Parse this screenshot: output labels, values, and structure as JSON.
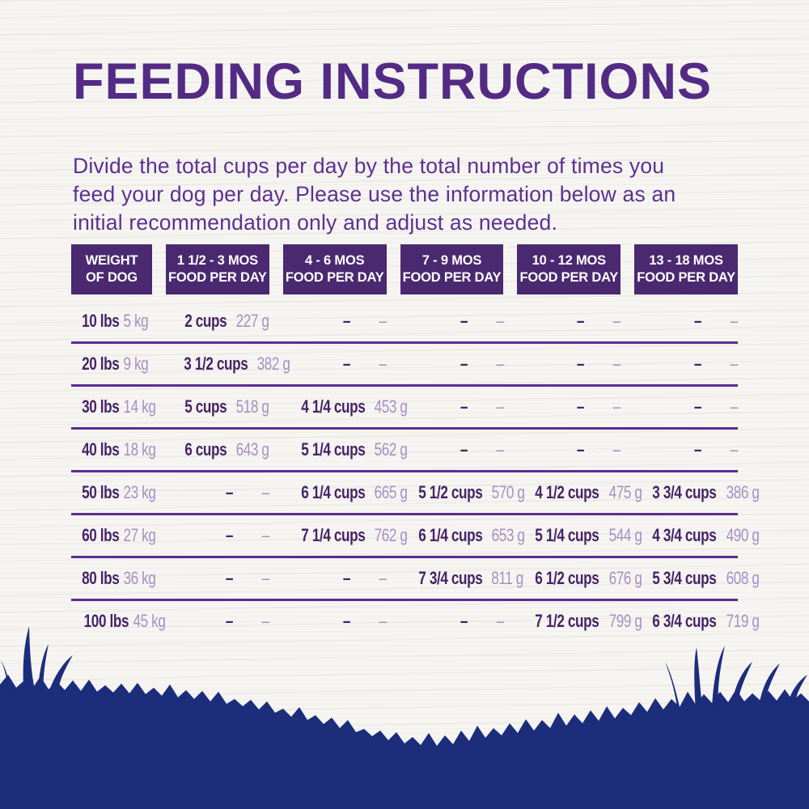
{
  "page": {
    "title": "FEEDING INSTRUCTIONS",
    "intro_lines": [
      "Divide the total cups per day by the total number of times you",
      "feed your dog per day. Please use the information below as an",
      "initial recommendation only and adjust as needed."
    ]
  },
  "colors": {
    "title_purple": "#532b84",
    "body_purple": "#5e3090",
    "header_bg": "#4b2971",
    "value_dark": "#472367",
    "value_light": "#a78fc3",
    "rule_purple": "#5c2c91",
    "grass_navy": "#1c2d7c",
    "background": "#f6f5f2"
  },
  "table": {
    "headers": [
      {
        "line1": "WEIGHT",
        "line2": "OF DOG"
      },
      {
        "line1": "1 1/2 - 3 MOS",
        "line2": "FOOD PER DAY"
      },
      {
        "line1": "4 - 6 MOS",
        "line2": "FOOD PER DAY"
      },
      {
        "line1": "7 - 9 MOS",
        "line2": "FOOD PER DAY"
      },
      {
        "line1": "10 - 12 MOS",
        "line2": "FOOD PER DAY"
      },
      {
        "line1": "13 - 18 MOS",
        "line2": "FOOD PER DAY"
      }
    ],
    "rows": [
      {
        "lbs": "10 lbs",
        "kg": "5 kg",
        "cells": [
          {
            "cups": "2 cups",
            "grams": "227 g"
          },
          {
            "cups": "–",
            "grams": "–"
          },
          {
            "cups": "–",
            "grams": "–"
          },
          {
            "cups": "–",
            "grams": "–"
          },
          {
            "cups": "–",
            "grams": "–"
          }
        ]
      },
      {
        "lbs": "20 lbs",
        "kg": "9 kg",
        "cells": [
          {
            "cups": "3 1/2 cups",
            "grams": "382 g"
          },
          {
            "cups": "–",
            "grams": "–"
          },
          {
            "cups": "–",
            "grams": "–"
          },
          {
            "cups": "–",
            "grams": "–"
          },
          {
            "cups": "–",
            "grams": "–"
          }
        ]
      },
      {
        "lbs": "30 lbs",
        "kg": "14 kg",
        "cells": [
          {
            "cups": "5 cups",
            "grams": "518 g"
          },
          {
            "cups": "4 1/4 cups",
            "grams": "453 g"
          },
          {
            "cups": "–",
            "grams": "–"
          },
          {
            "cups": "–",
            "grams": "–"
          },
          {
            "cups": "–",
            "grams": "–"
          }
        ]
      },
      {
        "lbs": "40 lbs",
        "kg": "18 kg",
        "cells": [
          {
            "cups": "6 cups",
            "grams": "643 g"
          },
          {
            "cups": "5 1/4 cups",
            "grams": "562 g"
          },
          {
            "cups": "–",
            "grams": "–"
          },
          {
            "cups": "–",
            "grams": "–"
          },
          {
            "cups": "–",
            "grams": "–"
          }
        ]
      },
      {
        "lbs": "50 lbs",
        "kg": "23 kg",
        "cells": [
          {
            "cups": "–",
            "grams": "–"
          },
          {
            "cups": "6 1/4 cups",
            "grams": "665 g"
          },
          {
            "cups": "5 1/2 cups",
            "grams": "570 g"
          },
          {
            "cups": "4 1/2 cups",
            "grams": "475 g"
          },
          {
            "cups": "3 3/4 cups",
            "grams": "386 g"
          }
        ]
      },
      {
        "lbs": "60 lbs",
        "kg": "27 kg",
        "cells": [
          {
            "cups": "–",
            "grams": "–"
          },
          {
            "cups": "7 1/4 cups",
            "grams": "762 g"
          },
          {
            "cups": "6 1/4 cups",
            "grams": "653 g"
          },
          {
            "cups": "5 1/4 cups",
            "grams": "544 g"
          },
          {
            "cups": "4 3/4 cups",
            "grams": "490 g"
          }
        ]
      },
      {
        "lbs": "80 lbs",
        "kg": "36 kg",
        "cells": [
          {
            "cups": "–",
            "grams": "–"
          },
          {
            "cups": "–",
            "grams": "–"
          },
          {
            "cups": "7 3/4 cups",
            "grams": "811 g"
          },
          {
            "cups": "6 1/2 cups",
            "grams": "676 g"
          },
          {
            "cups": "5 3/4 cups",
            "grams": "608 g"
          }
        ]
      },
      {
        "lbs": "100 lbs",
        "kg": "45 kg",
        "cells": [
          {
            "cups": "–",
            "grams": "–"
          },
          {
            "cups": "–",
            "grams": "–"
          },
          {
            "cups": "–",
            "grams": "–"
          },
          {
            "cups": "7 1/2 cups",
            "grams": "799 g"
          },
          {
            "cups": "6 3/4 cups",
            "grams": "719 g"
          }
        ]
      }
    ]
  }
}
